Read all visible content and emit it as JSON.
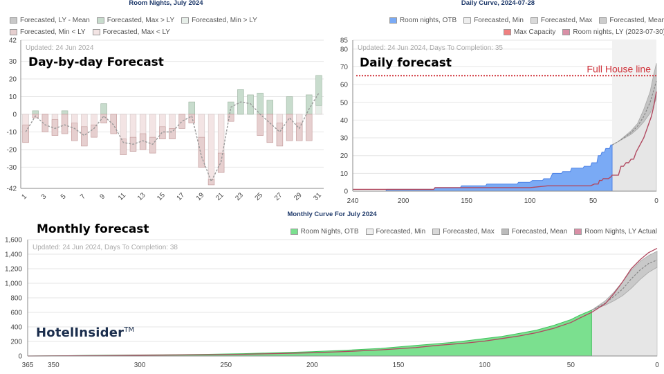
{
  "chart_data": [
    {
      "type": "bar",
      "title": "Room Nights, July 2024",
      "heading": "Day-by-day Forecast",
      "updated": "Updated: 24 Jun 2024",
      "legend": [
        {
          "label": "Forecasted, LY - Mean",
          "color": "#c8c8c8"
        },
        {
          "label": "Forecasted, Max > LY",
          "color": "#c8dccd"
        },
        {
          "label": "Forecasted, Min > LY",
          "color": "#e6eee8"
        },
        {
          "label": "Forecasted, Min < LY",
          "color": "#e6cfcf"
        },
        {
          "label": "Forecasted, Max < LY",
          "color": "#f3e4e4"
        }
      ],
      "ylim": [
        -42,
        42
      ],
      "y_ticks": [
        42,
        30,
        20,
        10,
        0,
        -10,
        -20,
        -30,
        -42
      ],
      "x_tick_labels": [
        "1",
        "3",
        "5",
        "7",
        "9",
        "11",
        "13",
        "15",
        "17",
        "19",
        "21",
        "23",
        "25",
        "27",
        "29",
        "31"
      ],
      "days": [
        1,
        2,
        3,
        4,
        5,
        6,
        7,
        8,
        9,
        10,
        11,
        12,
        13,
        14,
        15,
        16,
        17,
        18,
        19,
        20,
        21,
        22,
        23,
        24,
        25,
        26,
        27,
        28,
        29,
        30,
        31
      ],
      "max_values": [
        -6,
        2,
        0,
        -3,
        2,
        -5,
        -7,
        -6,
        6,
        0,
        -14,
        -13,
        -11,
        -13,
        -7,
        -8,
        0,
        7,
        -13,
        -37,
        -22,
        7,
        14,
        11,
        12,
        8,
        -5,
        10,
        -5,
        11,
        22
      ],
      "min_values": [
        -16,
        -2,
        -10,
        -12,
        -11,
        -15,
        -18,
        -13,
        -5,
        -11,
        -23,
        -21,
        -20,
        -22,
        -14,
        -14,
        -8,
        -5,
        -30,
        -40,
        -33,
        -4,
        0,
        0,
        -12,
        -16,
        -18,
        -15,
        -15,
        -15,
        5
      ],
      "mean_values": [
        -10,
        -1,
        -6,
        -8,
        -6,
        -8,
        -12,
        -8,
        -1,
        -6,
        -16,
        -17,
        -15,
        -17,
        -10,
        -10,
        -4,
        -1,
        -24,
        -38,
        -27,
        4,
        7,
        6,
        0,
        -5,
        -10,
        -2,
        -8,
        3,
        12
      ]
    },
    {
      "type": "area",
      "title": "Daily Curve, 2024-07-28",
      "heading": "Daily forecast",
      "updated": "Updated: 24 Jun 2024, Days To Completion: 35",
      "legend": [
        {
          "label": "Room nights, OTB",
          "color": "#7aaaf5"
        },
        {
          "label": "Forecasted, Min",
          "color": "#eeeeee"
        },
        {
          "label": "Forecasted, Max",
          "color": "#d9d9d9"
        },
        {
          "label": "Forecasted, Mean",
          "color": "#cccccc"
        },
        {
          "label": "Max Capacity",
          "color": "#f08080"
        },
        {
          "label": "Room nights, LY (2023-07-30)",
          "color": "#d98fa6"
        }
      ],
      "annotation": "Full House line",
      "capacity": 65,
      "ylim": [
        0,
        85
      ],
      "y_ticks": [
        85,
        80,
        70,
        60,
        50,
        40,
        30,
        20,
        10,
        0
      ],
      "x_ticks": [
        240,
        200,
        150,
        100,
        50,
        0
      ],
      "xlim": [
        240,
        0
      ],
      "otb": [
        [
          240,
          0
        ],
        [
          214,
          0
        ],
        [
          213,
          1
        ],
        [
          176,
          1
        ],
        [
          175,
          2
        ],
        [
          155,
          2
        ],
        [
          154,
          3
        ],
        [
          135,
          3
        ],
        [
          134,
          4
        ],
        [
          110,
          4
        ],
        [
          109,
          5
        ],
        [
          100,
          5
        ],
        [
          98,
          6
        ],
        [
          90,
          6
        ],
        [
          89,
          7
        ],
        [
          84,
          7
        ],
        [
          82,
          10
        ],
        [
          75,
          10
        ],
        [
          74,
          11
        ],
        [
          68,
          11
        ],
        [
          67,
          13
        ],
        [
          58,
          13
        ],
        [
          57,
          14
        ],
        [
          52,
          14
        ],
        [
          51,
          16
        ],
        [
          47,
          16
        ],
        [
          46,
          20
        ],
        [
          44,
          20
        ],
        [
          43,
          22
        ],
        [
          41,
          22
        ],
        [
          40,
          24
        ],
        [
          37,
          24
        ],
        [
          36,
          26
        ],
        [
          35,
          26
        ]
      ],
      "ly": [
        [
          240,
          1
        ],
        [
          214,
          1
        ],
        [
          213,
          1
        ],
        [
          176,
          1
        ],
        [
          175,
          2
        ],
        [
          135,
          2
        ],
        [
          120,
          2
        ],
        [
          100,
          2
        ],
        [
          86,
          3
        ],
        [
          70,
          3
        ],
        [
          60,
          3
        ],
        [
          52,
          3
        ],
        [
          49,
          4
        ],
        [
          46,
          4
        ],
        [
          45,
          6
        ],
        [
          43,
          6
        ],
        [
          42,
          7
        ],
        [
          40,
          7
        ],
        [
          38,
          7
        ],
        [
          36,
          8
        ],
        [
          35,
          9
        ],
        [
          30,
          9
        ],
        [
          28,
          14
        ],
        [
          26,
          14
        ],
        [
          24,
          16
        ],
        [
          22,
          16
        ],
        [
          20,
          18
        ],
        [
          18,
          18
        ],
        [
          16,
          22
        ],
        [
          13,
          26
        ],
        [
          10,
          30
        ],
        [
          8,
          34
        ],
        [
          6,
          38
        ],
        [
          4,
          42
        ],
        [
          2,
          48
        ],
        [
          0,
          56
        ]
      ],
      "forecast_min": [
        [
          35,
          26
        ],
        [
          30,
          28
        ],
        [
          25,
          30
        ],
        [
          20,
          32
        ],
        [
          15,
          35
        ],
        [
          10,
          39
        ],
        [
          5,
          44
        ],
        [
          0,
          52
        ]
      ],
      "forecast_max": [
        [
          35,
          26
        ],
        [
          30,
          28
        ],
        [
          25,
          31
        ],
        [
          20,
          34
        ],
        [
          15,
          38
        ],
        [
          10,
          46
        ],
        [
          5,
          56
        ],
        [
          2,
          66
        ],
        [
          0,
          72
        ]
      ],
      "forecast_mean": [
        [
          35,
          26
        ],
        [
          30,
          28
        ],
        [
          25,
          30.5
        ],
        [
          20,
          33
        ],
        [
          15,
          36.5
        ],
        [
          10,
          42
        ],
        [
          5,
          50
        ],
        [
          2,
          57
        ],
        [
          0,
          62
        ]
      ]
    },
    {
      "type": "area",
      "title": "Monthly Curve For July 2024",
      "heading": "Monthly forecast",
      "updated": "Updated: 24 Jun 2024, Days To Completion: 38",
      "legend": [
        {
          "label": "Room Nights, OTB",
          "color": "#7be08f"
        },
        {
          "label": "Forecasted, Min",
          "color": "#eeeeee"
        },
        {
          "label": "Forecasted, Max",
          "color": "#d9d9d9"
        },
        {
          "label": "Forecasted, Mean",
          "color": "#bbbbbb"
        },
        {
          "label": "Room Nights, LY Actual",
          "color": "#d98fa6"
        }
      ],
      "ylim": [
        0,
        1600
      ],
      "y_ticks": [
        1600,
        1400,
        1200,
        1000,
        800,
        600,
        400,
        200,
        0
      ],
      "y_tick_labels": [
        "1,600",
        "1,400",
        "1,200",
        "1,000",
        "800",
        "600",
        "400",
        "200",
        "0"
      ],
      "x_ticks": [
        365,
        350,
        300,
        250,
        200,
        150,
        100,
        50,
        0
      ],
      "xlim": [
        365,
        0
      ],
      "otb": [
        [
          365,
          0
        ],
        [
          350,
          3
        ],
        [
          320,
          10
        ],
        [
          300,
          14
        ],
        [
          280,
          18
        ],
        [
          260,
          24
        ],
        [
          240,
          32
        ],
        [
          220,
          45
        ],
        [
          200,
          60
        ],
        [
          180,
          80
        ],
        [
          160,
          105
        ],
        [
          150,
          125
        ],
        [
          140,
          145
        ],
        [
          130,
          165
        ],
        [
          120,
          185
        ],
        [
          110,
          210
        ],
        [
          100,
          240
        ],
        [
          90,
          270
        ],
        [
          80,
          310
        ],
        [
          70,
          355
        ],
        [
          60,
          420
        ],
        [
          50,
          500
        ],
        [
          45,
          560
        ],
        [
          38,
          630
        ]
      ],
      "ly": [
        [
          365,
          0
        ],
        [
          350,
          2
        ],
        [
          320,
          6
        ],
        [
          300,
          10
        ],
        [
          280,
          14
        ],
        [
          260,
          18
        ],
        [
          240,
          24
        ],
        [
          220,
          33
        ],
        [
          200,
          45
        ],
        [
          180,
          62
        ],
        [
          160,
          85
        ],
        [
          150,
          100
        ],
        [
          140,
          115
        ],
        [
          130,
          140
        ],
        [
          120,
          160
        ],
        [
          110,
          180
        ],
        [
          100,
          205
        ],
        [
          90,
          240
        ],
        [
          80,
          275
        ],
        [
          70,
          320
        ],
        [
          60,
          380
        ],
        [
          50,
          460
        ],
        [
          45,
          520
        ],
        [
          38,
          600
        ],
        [
          30,
          720
        ],
        [
          25,
          860
        ],
        [
          20,
          1020
        ],
        [
          15,
          1200
        ],
        [
          10,
          1320
        ],
        [
          5,
          1420
        ],
        [
          0,
          1480
        ]
      ],
      "forecast_min": [
        [
          38,
          630
        ],
        [
          30,
          700
        ],
        [
          25,
          760
        ],
        [
          20,
          830
        ],
        [
          15,
          930
        ],
        [
          10,
          1050
        ],
        [
          5,
          1150
        ],
        [
          0,
          1220
        ]
      ],
      "forecast_max": [
        [
          38,
          630
        ],
        [
          30,
          760
        ],
        [
          25,
          880
        ],
        [
          20,
          1020
        ],
        [
          15,
          1180
        ],
        [
          10,
          1300
        ],
        [
          5,
          1380
        ],
        [
          0,
          1440
        ]
      ],
      "forecast_mean": [
        [
          38,
          630
        ],
        [
          30,
          730
        ],
        [
          25,
          820
        ],
        [
          20,
          920
        ],
        [
          15,
          1060
        ],
        [
          10,
          1180
        ],
        [
          5,
          1270
        ],
        [
          0,
          1320
        ]
      ]
    }
  ],
  "branding": {
    "logo": "HotelInsider",
    "trademark": "TM"
  }
}
